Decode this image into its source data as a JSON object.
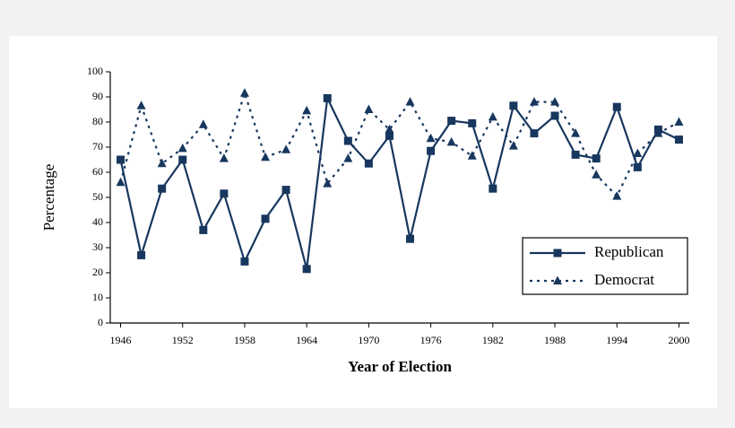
{
  "chart_data": {
    "type": "line",
    "xlabel": "Year of Election",
    "ylabel": "Percentage",
    "x": [
      1946,
      1948,
      1950,
      1952,
      1954,
      1956,
      1958,
      1960,
      1962,
      1964,
      1966,
      1968,
      1970,
      1972,
      1974,
      1976,
      1978,
      1980,
      1982,
      1984,
      1986,
      1988,
      1990,
      1992,
      1994,
      1996,
      1998,
      2000
    ],
    "series": [
      {
        "name": "Republican",
        "color": "#17375e",
        "line_style": "solid",
        "marker": "square",
        "values": [
          65,
          27,
          53.5,
          65,
          37,
          51.5,
          24.5,
          41.5,
          53,
          21.5,
          89.5,
          72.5,
          63.5,
          74.5,
          33.5,
          68.5,
          80.5,
          79.5,
          53.5,
          86.5,
          75.5,
          82.5,
          67,
          65.5,
          86,
          62,
          77,
          73
        ]
      },
      {
        "name": "Democrat",
        "color": "#17375e",
        "line_style": "dashed",
        "marker": "triangle",
        "values": [
          56,
          86.5,
          63.5,
          69.5,
          79,
          65.5,
          91.5,
          66,
          69,
          84.5,
          55.5,
          65.5,
          85,
          77,
          88,
          73.5,
          72,
          66.5,
          82,
          70.5,
          88,
          88,
          75.5,
          59,
          50.5,
          67.5,
          75.5,
          80
        ]
      }
    ],
    "xlim": [
      1945,
      2001
    ],
    "xticks": [
      1946,
      1952,
      1958,
      1964,
      1970,
      1976,
      1982,
      1988,
      1994,
      2000
    ],
    "ylim": [
      0,
      100
    ],
    "yticks": [
      0,
      10,
      20,
      30,
      40,
      50,
      60,
      70,
      80,
      90,
      100
    ],
    "legend": "lower right"
  }
}
